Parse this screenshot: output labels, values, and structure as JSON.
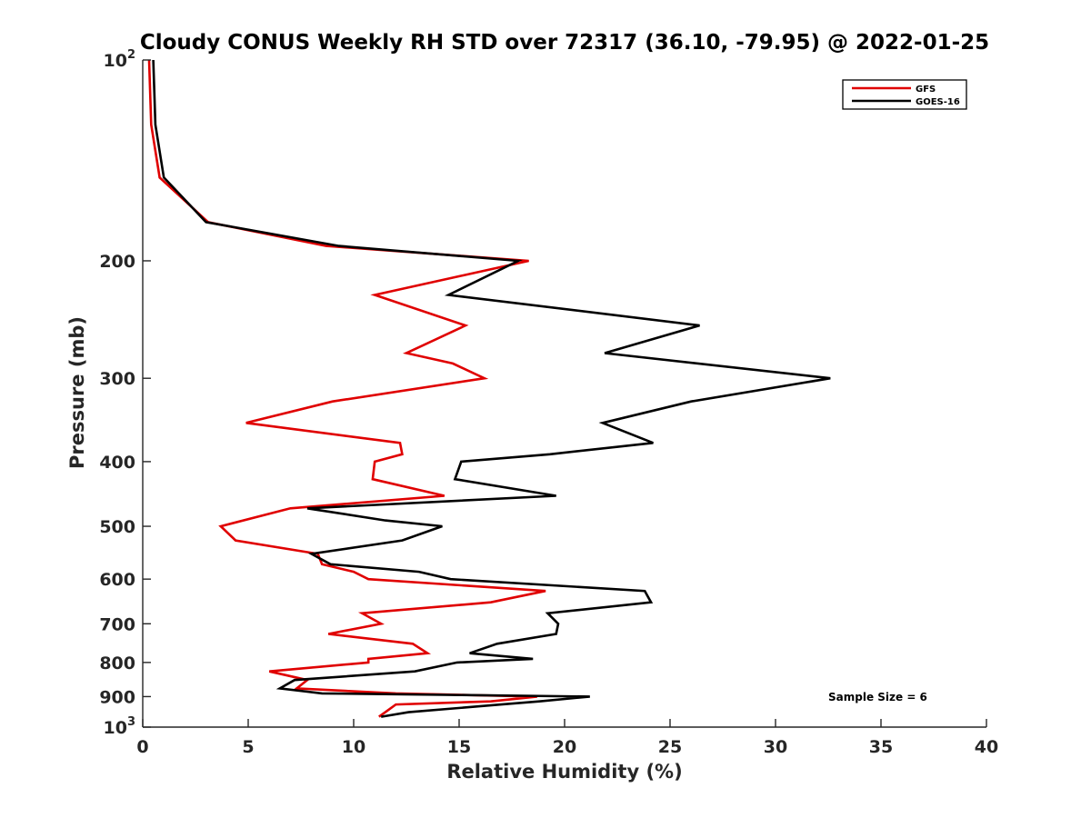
{
  "chart_data": {
    "type": "line",
    "title": "Cloudy CONUS Weekly RH STD over 72317 (36.10, -79.95) @ 2022-01-25",
    "xlabel": "Relative Humidity (%)",
    "ylabel": "Pressure (mb)",
    "xlim": [
      0,
      40
    ],
    "ylim": [
      100,
      1000
    ],
    "y_scale": "log",
    "y_reversed": true,
    "x_ticks": [
      "0",
      "5",
      "10",
      "15",
      "20",
      "25",
      "30",
      "35",
      "40"
    ],
    "y_ticks": [
      {
        "value": 100,
        "base": "10",
        "exp": "2"
      },
      {
        "value": 200,
        "label": "200"
      },
      {
        "value": 300,
        "label": "300"
      },
      {
        "value": 400,
        "label": "400"
      },
      {
        "value": 500,
        "label": "500"
      },
      {
        "value": 600,
        "label": "600"
      },
      {
        "value": 700,
        "label": "700"
      },
      {
        "value": 800,
        "label": "800"
      },
      {
        "value": 900,
        "label": "900"
      },
      {
        "value": 1000,
        "base": "10",
        "exp": "3"
      }
    ],
    "legend_position": "top-right",
    "annotation": "Sample Size = 6",
    "series": [
      {
        "name": "GFS",
        "color": "#e00000",
        "points": [
          [
            0.3,
            100
          ],
          [
            0.4,
            125
          ],
          [
            0.8,
            150
          ],
          [
            3.1,
            175
          ],
          [
            8.7,
            190
          ],
          [
            18.3,
            200
          ],
          [
            11.0,
            225
          ],
          [
            15.3,
            250
          ],
          [
            12.5,
            275
          ],
          [
            14.7,
            285
          ],
          [
            16.2,
            300
          ],
          [
            9.0,
            325
          ],
          [
            4.9,
            350
          ],
          [
            12.2,
            375
          ],
          [
            12.3,
            390
          ],
          [
            11.0,
            400
          ],
          [
            10.9,
            425
          ],
          [
            14.3,
            450
          ],
          [
            7.0,
            470
          ],
          [
            3.7,
            500
          ],
          [
            4.4,
            525
          ],
          [
            8.3,
            550
          ],
          [
            8.5,
            570
          ],
          [
            10.0,
            585
          ],
          [
            10.7,
            600
          ],
          [
            19.1,
            625
          ],
          [
            16.5,
            650
          ],
          [
            10.4,
            675
          ],
          [
            11.3,
            700
          ],
          [
            8.8,
            725
          ],
          [
            12.8,
            750
          ],
          [
            13.5,
            775
          ],
          [
            10.7,
            790
          ],
          [
            10.7,
            800
          ],
          [
            6.0,
            825
          ],
          [
            7.8,
            850
          ],
          [
            7.3,
            875
          ],
          [
            12.0,
            890
          ],
          [
            18.7,
            900
          ],
          [
            16.5,
            915
          ],
          [
            12.0,
            925
          ],
          [
            11.5,
            950
          ],
          [
            11.2,
            965
          ]
        ]
      },
      {
        "name": "GOES-16",
        "color": "#000000",
        "points": [
          [
            0.5,
            100
          ],
          [
            0.6,
            125
          ],
          [
            1.0,
            150
          ],
          [
            3.0,
            175
          ],
          [
            9.3,
            190
          ],
          [
            17.8,
            200
          ],
          [
            14.5,
            225
          ],
          [
            26.4,
            250
          ],
          [
            21.9,
            275
          ],
          [
            32.6,
            300
          ],
          [
            26.0,
            325
          ],
          [
            21.8,
            350
          ],
          [
            24.2,
            375
          ],
          [
            19.3,
            390
          ],
          [
            15.1,
            400
          ],
          [
            14.8,
            425
          ],
          [
            19.6,
            450
          ],
          [
            7.8,
            470
          ],
          [
            11.5,
            490
          ],
          [
            14.2,
            500
          ],
          [
            12.3,
            525
          ],
          [
            8.0,
            550
          ],
          [
            8.9,
            570
          ],
          [
            13.1,
            585
          ],
          [
            14.6,
            600
          ],
          [
            23.8,
            625
          ],
          [
            24.1,
            650
          ],
          [
            19.2,
            675
          ],
          [
            19.7,
            700
          ],
          [
            19.6,
            725
          ],
          [
            16.8,
            750
          ],
          [
            15.5,
            775
          ],
          [
            18.5,
            790
          ],
          [
            14.9,
            800
          ],
          [
            12.9,
            825
          ],
          [
            7.2,
            850
          ],
          [
            6.5,
            875
          ],
          [
            8.5,
            890
          ],
          [
            21.2,
            900
          ],
          [
            18.8,
            915
          ],
          [
            17.0,
            925
          ],
          [
            12.6,
            950
          ],
          [
            11.3,
            965
          ]
        ]
      }
    ]
  }
}
